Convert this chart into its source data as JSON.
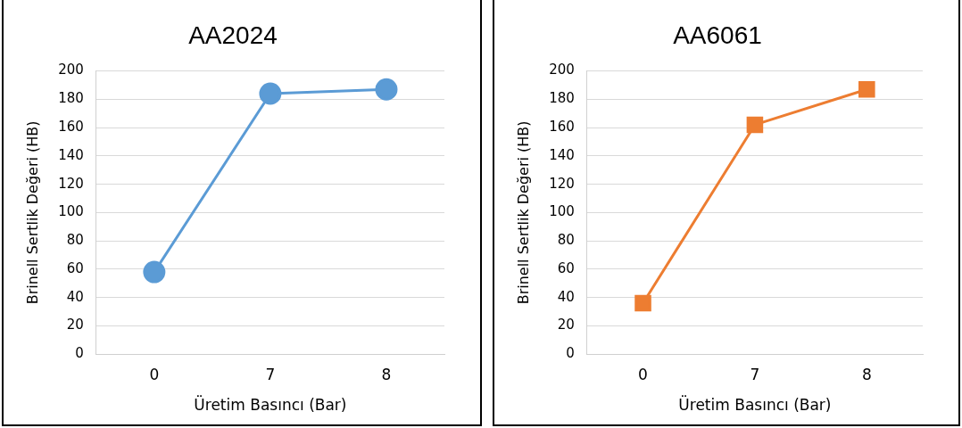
{
  "chart_data": [
    {
      "type": "line",
      "title": "AA2024",
      "xlabel": "Üretim Basıncı (Bar)",
      "ylabel": "Brinell Sertlik Değeri (HB)",
      "categories": [
        "0",
        "7",
        "8"
      ],
      "values": [
        58,
        184,
        187
      ],
      "color": "#5b9bd5",
      "marker": "circle",
      "ylim": [
        0,
        200
      ],
      "yticks": [
        0,
        20,
        40,
        60,
        80,
        100,
        120,
        140,
        160,
        180,
        200
      ],
      "grid": "y"
    },
    {
      "type": "line",
      "title": "AA6061",
      "xlabel": "Üretim Basıncı (Bar)",
      "ylabel": "Brinell Sertlik Değeri (HB)",
      "categories": [
        "0",
        "7",
        "8"
      ],
      "values": [
        36,
        162,
        187
      ],
      "color": "#ed7d31",
      "marker": "square",
      "ylim": [
        0,
        200
      ],
      "yticks": [
        0,
        20,
        40,
        60,
        80,
        100,
        120,
        140,
        160,
        180,
        200
      ],
      "grid": "y"
    }
  ]
}
